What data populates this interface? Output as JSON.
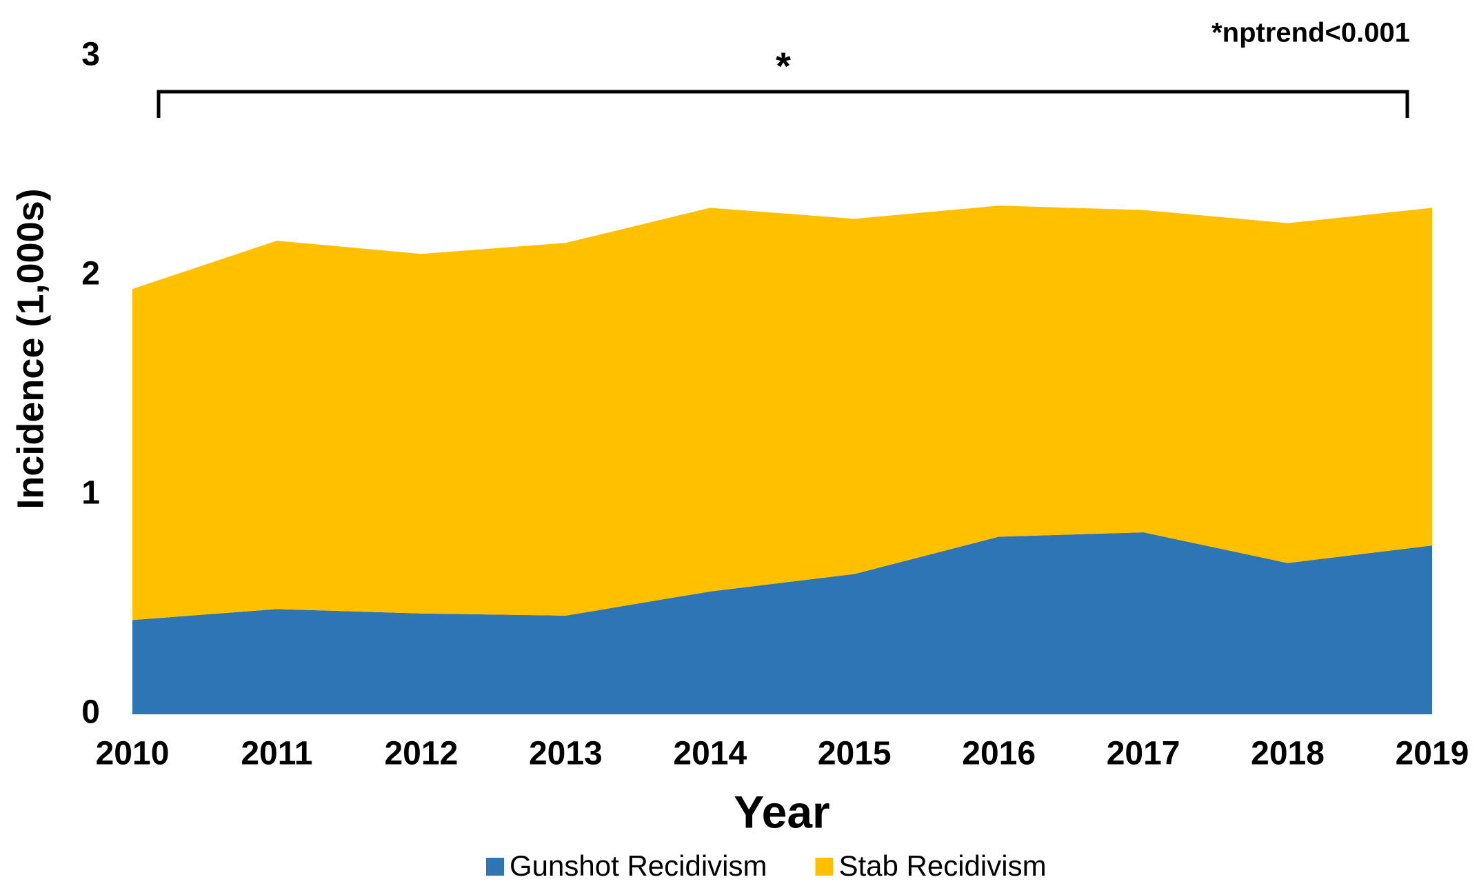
{
  "chart_data": {
    "type": "stacked-area",
    "y_label": "Incidence (1,000s)",
    "x_label": "Year",
    "annotation_star": "*",
    "annotation_note": "*nptrend<0.001",
    "x": [
      2010,
      2011,
      2012,
      2013,
      2014,
      2015,
      2016,
      2017,
      2018,
      2019
    ],
    "xlim": [
      2010,
      2019
    ],
    "xticks": [
      2010,
      2011,
      2012,
      2013,
      2014,
      2015,
      2016,
      2017,
      2018,
      2019
    ],
    "ylim": [
      0,
      3
    ],
    "yticks": [
      0,
      1,
      2,
      3
    ],
    "grid": false,
    "legend": "bottom",
    "series": [
      {
        "name": "Gunshot Recidivism",
        "color": "#2e75b6",
        "values": [
          0.43,
          0.48,
          0.46,
          0.45,
          0.56,
          0.64,
          0.81,
          0.83,
          0.69,
          0.77
        ]
      },
      {
        "name": "Stab Recidivism",
        "color": "#ffc000",
        "values": [
          1.51,
          1.68,
          1.64,
          1.7,
          1.75,
          1.62,
          1.51,
          1.47,
          1.55,
          1.54
        ]
      }
    ]
  }
}
